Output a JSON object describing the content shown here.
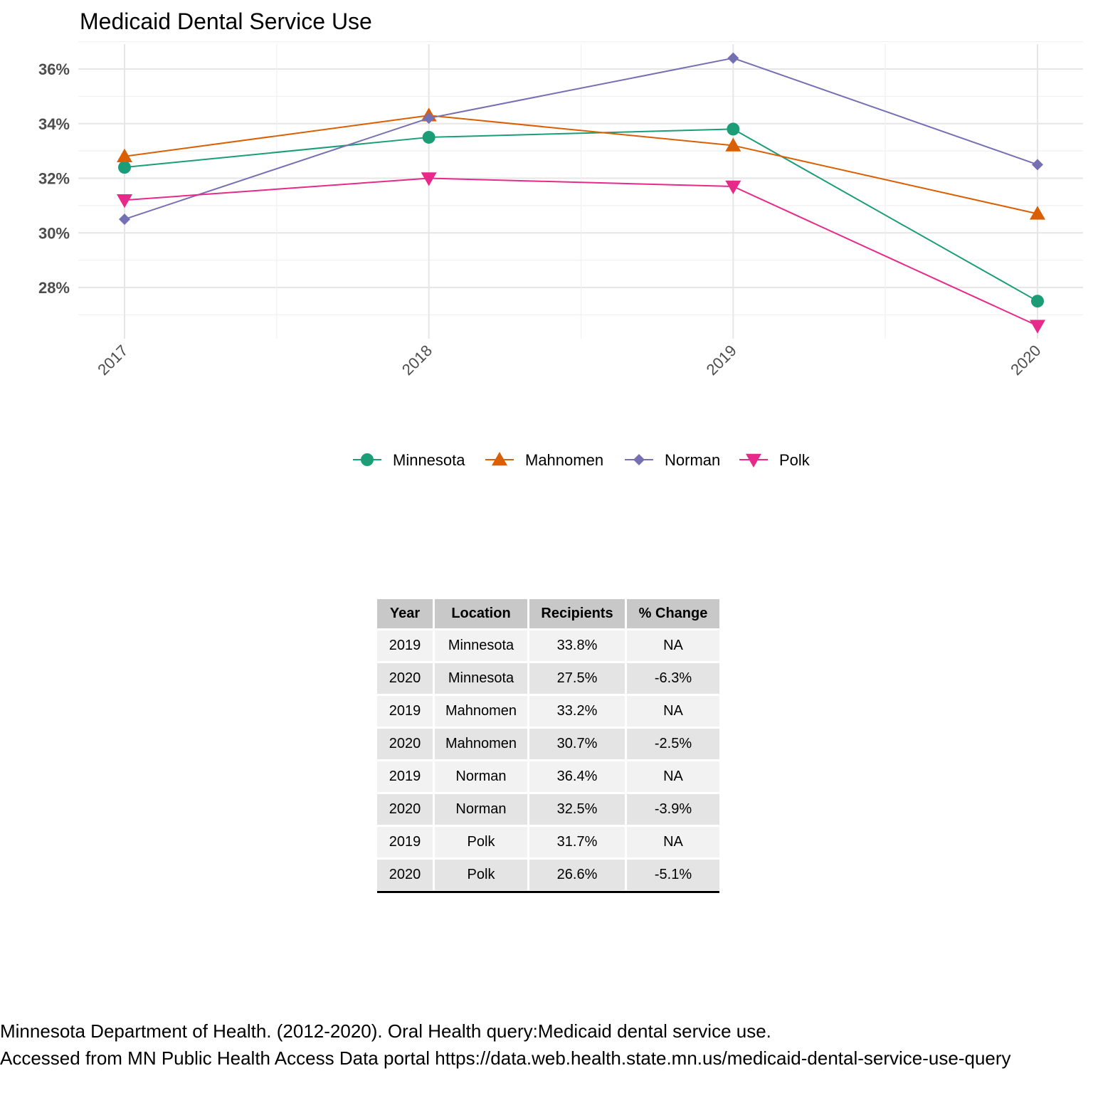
{
  "chart_data": {
    "type": "line",
    "title": "Medicaid Dental Service Use",
    "xlabel": "",
    "ylabel": "",
    "categories": [
      "2017",
      "2018",
      "2019",
      "2020"
    ],
    "y_ticks": [
      28,
      30,
      32,
      34,
      36
    ],
    "y_tick_labels": [
      "28%",
      "30%",
      "32%",
      "34%",
      "36%"
    ],
    "ylim": [
      26.2,
      37.0
    ],
    "grid": true,
    "legend_position": "bottom",
    "series": [
      {
        "name": "Minnesota",
        "color": "#1b9e77",
        "marker": "circle",
        "values": [
          32.4,
          33.5,
          33.8,
          27.5
        ]
      },
      {
        "name": "Mahnomen",
        "color": "#d95f02",
        "marker": "triangle-up",
        "values": [
          32.8,
          34.3,
          33.2,
          30.7
        ]
      },
      {
        "name": "Norman",
        "color": "#7570b3",
        "marker": "diamond",
        "values": [
          30.5,
          34.2,
          36.4,
          32.5
        ]
      },
      {
        "name": "Polk",
        "color": "#e7298a",
        "marker": "triangle-down",
        "values": [
          31.2,
          32.0,
          31.7,
          26.6
        ]
      }
    ]
  },
  "table": {
    "headers": [
      "Year",
      "Location",
      "Recipients",
      "% Change"
    ],
    "rows": [
      [
        "2019",
        "Minnesota",
        "33.8%",
        "NA"
      ],
      [
        "2020",
        "Minnesota",
        "27.5%",
        "-6.3%"
      ],
      [
        "2019",
        "Mahnomen",
        "33.2%",
        "NA"
      ],
      [
        "2020",
        "Mahnomen",
        "30.7%",
        "-2.5%"
      ],
      [
        "2019",
        "Norman",
        "36.4%",
        "NA"
      ],
      [
        "2020",
        "Norman",
        "32.5%",
        "-3.9%"
      ],
      [
        "2019",
        "Polk",
        "31.7%",
        "NA"
      ],
      [
        "2020",
        "Polk",
        "26.6%",
        "-5.1%"
      ]
    ]
  },
  "caption": {
    "line1": "Minnesota Department of Health. (2012-2020). Oral Health query:Medicaid dental service use.",
    "line2": "Accessed from MN Public Health Access Data portal https://data.web.health.state.mn.us/medicaid-dental-service-use-query"
  }
}
